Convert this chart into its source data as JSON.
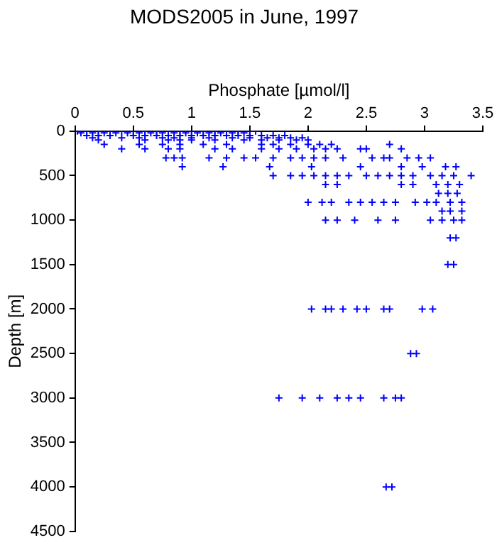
{
  "chart_data": {
    "type": "scatter",
    "title": "MODS2005 in June, 1997",
    "xlabel": "Phosphate [µmol/l]",
    "ylabel": "Depth [m]",
    "xlim": [
      0,
      3.5
    ],
    "xticks": [
      0,
      0.5,
      1,
      1.5,
      2,
      2.5,
      3,
      3.5
    ],
    "ylim": [
      4500,
      0
    ],
    "yticks": [
      0,
      500,
      1000,
      1500,
      2000,
      2500,
      3000,
      3500,
      4000,
      4500
    ],
    "grid": false,
    "legend": false,
    "marker": "cross",
    "series": [
      {
        "color": "#0000ff",
        "x": [
          0.02,
          0.1,
          0.2,
          0.3,
          0.4,
          0.5,
          0.6,
          0.7,
          0.8,
          0.9,
          1.0,
          1.1,
          1.2,
          1.3,
          1.4,
          1.5,
          1.55,
          0.05,
          0.15,
          0.25,
          0.35,
          0.45,
          0.55,
          0.65,
          0.75,
          0.85,
          0.95,
          1.05,
          1.15,
          1.25,
          1.35,
          1.45,
          0.1,
          0.2,
          0.3,
          0.5,
          0.6,
          0.7,
          0.8,
          0.9,
          1.0,
          1.1,
          1.2,
          1.3,
          1.4,
          1.5,
          1.6,
          1.7,
          1.8,
          0.15,
          0.4,
          0.55,
          0.75,
          0.85,
          1.0,
          1.15,
          1.35,
          1.5,
          1.65,
          1.75,
          1.85,
          1.95,
          0.2,
          0.6,
          0.8,
          0.9,
          1.0,
          1.2,
          1.45,
          1.6,
          1.75,
          1.9,
          2.0,
          0.25,
          0.55,
          0.75,
          0.9,
          1.1,
          1.3,
          1.6,
          1.7,
          1.85,
          2.0,
          2.1,
          2.2,
          2.7,
          0.4,
          0.6,
          0.8,
          0.9,
          1.2,
          1.35,
          1.6,
          1.75,
          1.9,
          2.05,
          2.15,
          2.25,
          2.45,
          2.5,
          2.8,
          0.78,
          0.85,
          0.92,
          1.15,
          1.3,
          1.45,
          1.55,
          1.7,
          1.85,
          1.95,
          2.05,
          2.15,
          2.3,
          2.55,
          2.65,
          2.7,
          2.85,
          2.95,
          3.05,
          0.92,
          1.27,
          1.67,
          2.03,
          2.45,
          2.8,
          2.98,
          3.18,
          3.27,
          1.7,
          1.85,
          1.95,
          2.05,
          2.15,
          2.25,
          2.35,
          2.5,
          2.6,
          2.7,
          2.8,
          2.9,
          3.05,
          3.15,
          3.25,
          3.4,
          2.15,
          2.25,
          2.8,
          2.9,
          3.1,
          3.2,
          3.3,
          3.12,
          3.2,
          3.28,
          2.0,
          2.12,
          2.2,
          2.35,
          2.45,
          2.55,
          2.65,
          2.75,
          2.92,
          3.02,
          3.1,
          3.22,
          3.32,
          3.15,
          3.22,
          3.32,
          2.15,
          2.25,
          2.4,
          2.6,
          2.75,
          3.05,
          3.15,
          3.25,
          3.32,
          3.22,
          3.27,
          3.2,
          3.25,
          2.03,
          2.15,
          2.2,
          2.3,
          2.42,
          2.5,
          2.65,
          2.7,
          2.98,
          3.07,
          2.88,
          2.93,
          1.75,
          1.95,
          2.1,
          2.25,
          2.35,
          2.45,
          2.65,
          2.75,
          2.8,
          2.67,
          2.72
        ],
        "values": [
          0,
          0,
          0,
          0,
          0,
          0,
          0,
          0,
          0,
          0,
          0,
          0,
          0,
          0,
          0,
          0,
          0,
          20,
          20,
          20,
          20,
          20,
          20,
          20,
          20,
          20,
          20,
          20,
          20,
          20,
          20,
          20,
          50,
          50,
          50,
          50,
          50,
          50,
          50,
          50,
          50,
          50,
          50,
          50,
          50,
          50,
          50,
          50,
          50,
          75,
          75,
          75,
          75,
          75,
          75,
          75,
          75,
          75,
          75,
          75,
          75,
          75,
          100,
          100,
          100,
          100,
          100,
          100,
          100,
          100,
          100,
          100,
          100,
          150,
          150,
          150,
          150,
          150,
          150,
          150,
          150,
          150,
          150,
          150,
          150,
          150,
          200,
          200,
          200,
          200,
          200,
          200,
          200,
          200,
          200,
          200,
          200,
          200,
          200,
          200,
          200,
          300,
          300,
          300,
          300,
          300,
          300,
          300,
          300,
          300,
          300,
          300,
          300,
          300,
          300,
          300,
          300,
          300,
          300,
          300,
          400,
          400,
          400,
          400,
          400,
          400,
          400,
          400,
          400,
          500,
          500,
          500,
          500,
          500,
          500,
          500,
          500,
          500,
          500,
          500,
          500,
          500,
          500,
          500,
          500,
          600,
          600,
          600,
          600,
          600,
          600,
          600,
          700,
          700,
          700,
          800,
          800,
          800,
          800,
          800,
          800,
          800,
          800,
          800,
          800,
          800,
          800,
          800,
          900,
          900,
          900,
          1000,
          1000,
          1000,
          1000,
          1000,
          1000,
          1000,
          1000,
          1000,
          1200,
          1200,
          1500,
          1500,
          2000,
          2000,
          2000,
          2000,
          2000,
          2000,
          2000,
          2000,
          2000,
          2000,
          2500,
          2500,
          3000,
          3000,
          3000,
          3000,
          3000,
          3000,
          3000,
          3000,
          3000,
          4000,
          4000
        ]
      }
    ]
  }
}
